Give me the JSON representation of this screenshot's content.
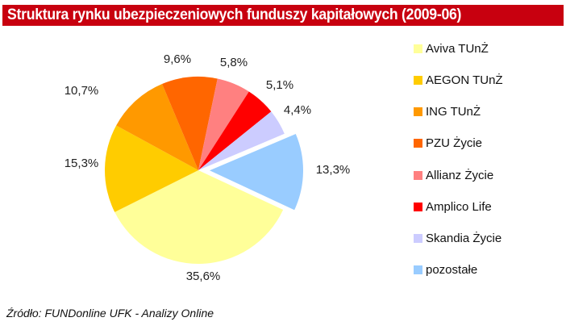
{
  "title": "Struktura rynku ubezpieczeniowych funduszy kapitałowych (2009-06)",
  "source": "Źródło: FUNDonline UFK - Analizy Online",
  "colors": {
    "title_bar": "#c8000f",
    "title_text": "#ffffff"
  },
  "chart_data": {
    "type": "pie",
    "title": "Struktura rynku ubezpieczeniowych funduszy kapitałowych (2009-06)",
    "categories": [
      "Aviva TUnŻ",
      "AEGON TUnŻ",
      "ING TUnŻ",
      "PZU Życie",
      "Allianz Życie",
      "Amplico Life",
      "Skandia Życie",
      "pozostałe"
    ],
    "values": [
      35.6,
      15.3,
      10.7,
      9.6,
      5.8,
      5.1,
      4.4,
      13.3
    ],
    "labels": [
      "35,6%",
      "15,3%",
      "10,7%",
      "9,6%",
      "5,8%",
      "5,1%",
      "4,4%",
      "13,3%"
    ],
    "colors": [
      "#ffff99",
      "#ffcc00",
      "#ff9900",
      "#ff6600",
      "#ff8080",
      "#ff0000",
      "#ccccff",
      "#99ccff"
    ],
    "exploded": [
      "pozostałe"
    ],
    "legend_position": "right",
    "unit": "%"
  },
  "legend": {
    "items": [
      {
        "label": "Aviva TUnŻ",
        "color": "#ffff99"
      },
      {
        "label": "AEGON TUnŻ",
        "color": "#ffcc00"
      },
      {
        "label": "ING TUnŻ",
        "color": "#ff9900"
      },
      {
        "label": "PZU Życie",
        "color": "#ff6600"
      },
      {
        "label": "Allianz Życie",
        "color": "#ff8080"
      },
      {
        "label": "Amplico Life",
        "color": "#ff0000"
      },
      {
        "label": "Skandia Życie",
        "color": "#ccccff"
      },
      {
        "label": "pozostałe",
        "color": "#99ccff"
      }
    ]
  }
}
